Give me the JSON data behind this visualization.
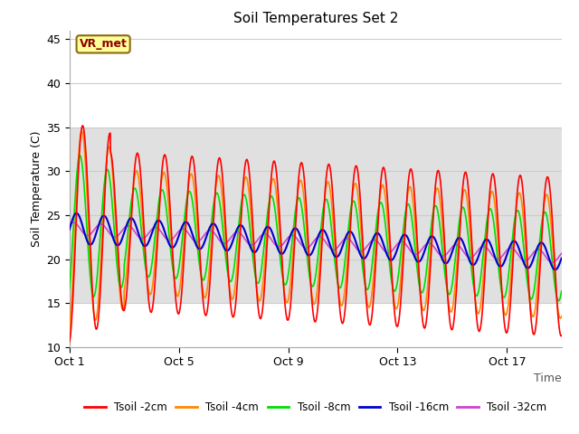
{
  "title": "Soil Temperatures Set 2",
  "xlabel": "Time",
  "ylabel": "Soil Temperature (C)",
  "ylim": [
    10,
    46
  ],
  "yticks": [
    10,
    15,
    20,
    25,
    30,
    35,
    40,
    45
  ],
  "xlim": [
    0,
    18
  ],
  "background_color": "#ffffff",
  "plot_bg_color": "#ffffff",
  "gray_band_ymin": 15,
  "gray_band_ymax": 35,
  "gray_band_color": "#e0e0e0",
  "grid_color": "#cccccc",
  "annotation_text": "VR_met",
  "annotation_bg": "#ffff99",
  "annotation_border": "#8B6914",
  "annotation_text_color": "#8B0000",
  "colors": {
    "2cm": "#ff0000",
    "4cm": "#ff8800",
    "8cm": "#00dd00",
    "16cm": "#0000cc",
    "32cm": "#cc44cc"
  },
  "legend_labels": [
    "Tsoil -2cm",
    "Tsoil -4cm",
    "Tsoil -8cm",
    "Tsoil -16cm",
    "Tsoil -32cm"
  ],
  "n_days": 18,
  "dt_hours": 0.1
}
